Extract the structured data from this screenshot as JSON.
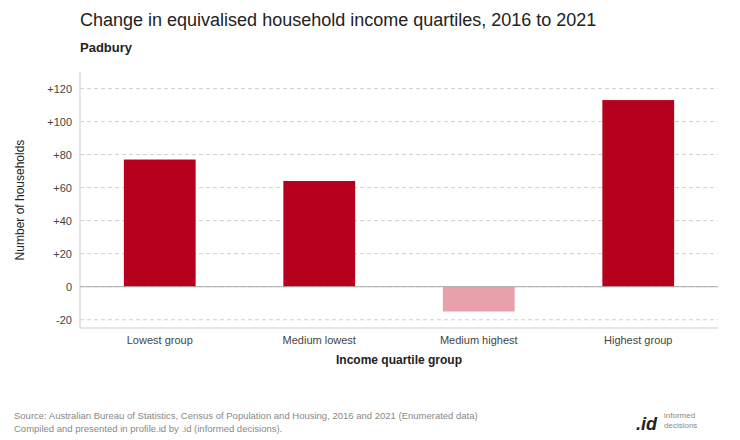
{
  "chart_data": {
    "type": "bar",
    "title": "Change in equivalised household income quartiles, 2016 to 2021",
    "subtitle": "Padbury",
    "categories": [
      "Lowest group",
      "Medium lowest",
      "Medium highest",
      "Highest group"
    ],
    "values": [
      77,
      64,
      -15,
      113
    ],
    "colors": [
      "#b5001e",
      "#b5001e",
      "#e8a0aa",
      "#b5001e"
    ],
    "xlabel": "Income quartile group",
    "ylabel": "Number of households",
    "ylim": [
      -25,
      130
    ],
    "yticks": [
      -20,
      0,
      {
        "value": 20,
        "label": "+20"
      },
      {
        "value": 40,
        "label": "+40"
      },
      {
        "value": 60,
        "label": "+60"
      },
      {
        "value": 80,
        "label": "+80"
      },
      {
        "value": 100,
        "label": "+100"
      },
      {
        "value": 120,
        "label": "+120"
      }
    ],
    "grid": true,
    "source": [
      "Source: Australian Bureau of Statistics, Census of Population and Housing, 2016 and 2021 (Enumerated data)",
      "Compiled and presented in profile.id by .id (informed decisions)."
    ],
    "annotations": [
      ".id",
      "informed",
      "decisions"
    ]
  }
}
